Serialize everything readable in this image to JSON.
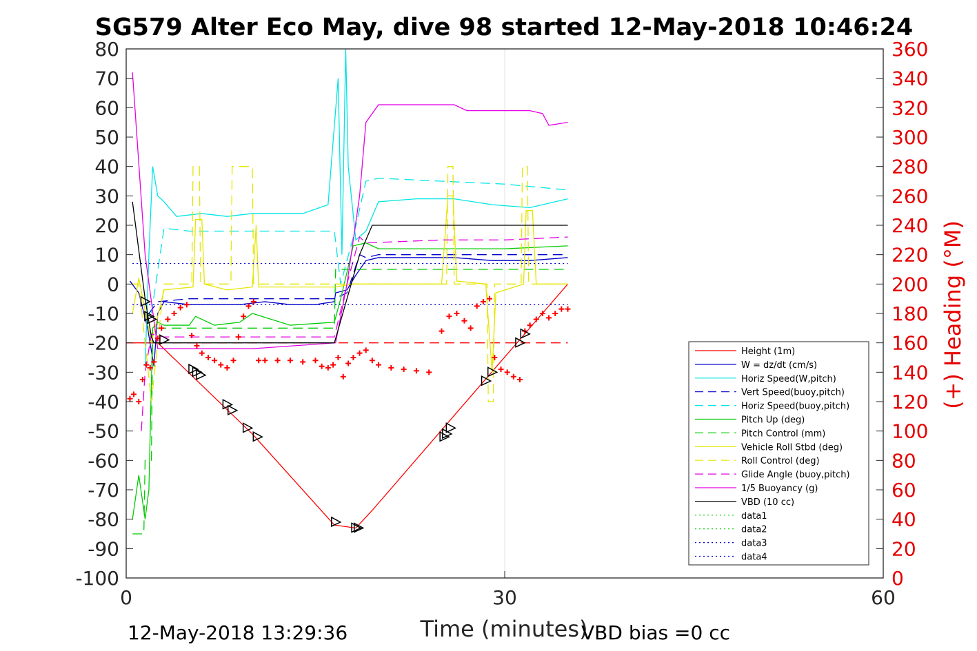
{
  "chart_data": {
    "type": "line",
    "title": "SG579 Alter Eco May, dive 98 started 12-May-2018 10:46:24",
    "xlabel": "Time (minutes)",
    "ylabel_right": "(+) Heading (°M)",
    "xlim": [
      0,
      60
    ],
    "ylim": [
      -100,
      80
    ],
    "ylim_right": [
      0,
      360
    ],
    "x_ticks": [
      "0",
      "30",
      "60"
    ],
    "y_ticks": [
      "80",
      "70",
      "60",
      "50",
      "40",
      "30",
      "20",
      "10",
      "0",
      "-10",
      "-20",
      "-30",
      "-40",
      "-50",
      "-60",
      "-70",
      "-80",
      "-90",
      "-100"
    ],
    "y_ticks_right": [
      "360",
      "340",
      "320",
      "300",
      "280",
      "260",
      "240",
      "220",
      "200",
      "180",
      "160",
      "140",
      "120",
      "100",
      "80",
      "60",
      "40",
      "20",
      "0"
    ],
    "grid": "x-only",
    "legend_position": "right-inside",
    "footer_left": "12-May-2018 13:29:36",
    "footer_right": "VBD bias =0 cc",
    "series": [
      {
        "name": "Height (1m)",
        "color": "#ff0000",
        "style": "solid",
        "x": [
          0,
          1.5,
          2.5,
          10,
          16.5,
          18.2,
          19.5,
          35
        ],
        "y": [
          -20,
          -20,
          -20,
          -51,
          -82,
          -83,
          -77,
          0
        ]
      },
      {
        "name": "W = dz/dt (cm/s)",
        "color": "#0000cc",
        "style": "solid",
        "x": [
          0.3,
          1,
          1.7,
          2.2,
          2.5,
          3,
          5,
          7,
          9,
          11,
          13,
          15,
          16.5,
          16.6,
          17.5,
          18.2,
          19,
          20,
          23,
          26,
          29,
          32,
          35
        ],
        "y": [
          1,
          -3,
          -15,
          -28,
          -10,
          -6,
          -7,
          -7,
          -7,
          -6,
          -7,
          -7,
          -6,
          -3,
          -2,
          3,
          8,
          9,
          9,
          9,
          8,
          8,
          9
        ]
      },
      {
        "name": "Horiz Speed(W,pitch)",
        "color": "#00e5e5",
        "style": "solid",
        "x": [
          1.5,
          1.8,
          2.1,
          2.5,
          3,
          4,
          6,
          8,
          10,
          12,
          14,
          16,
          16.8,
          17.1,
          17.4,
          17.6,
          18.2,
          19,
          20,
          23,
          26,
          29,
          32,
          34,
          35
        ],
        "y": [
          -28,
          10,
          40,
          30,
          28,
          23,
          24,
          23,
          24,
          24,
          24,
          27,
          70,
          10,
          80,
          40,
          15,
          18,
          28,
          29,
          29,
          27,
          26,
          28,
          29
        ]
      },
      {
        "name": "Vert Speed(buoy,pitch)",
        "color": "#0000cc",
        "style": "dashed",
        "x": [
          1.8,
          2.5,
          5,
          10,
          16.5,
          17.5,
          18.5,
          19,
          20,
          25,
          30,
          35
        ],
        "y": [
          -10,
          -6,
          -5,
          -5,
          -5,
          -3,
          10,
          9,
          10,
          10,
          10,
          10
        ]
      },
      {
        "name": "Horiz Speed(buoy,pitch)",
        "color": "#00e5e5",
        "style": "dashed",
        "x": [
          2,
          3,
          5,
          10,
          16.5,
          17,
          18,
          19,
          20,
          25,
          30,
          35
        ],
        "y": [
          -10,
          19,
          18,
          18,
          18,
          0,
          16,
          35,
          36,
          35,
          34,
          32
        ]
      },
      {
        "name": "Pitch Up (deg)",
        "color": "#00cc00",
        "style": "solid",
        "x": [
          0.5,
          1,
          1.5,
          1.8,
          2.1,
          2.5,
          3,
          5,
          5.5,
          7,
          9,
          10,
          13,
          16.5,
          17,
          18,
          19,
          20,
          25,
          30,
          35
        ],
        "y": [
          -80,
          -65,
          -80,
          -70,
          -15,
          -13,
          -14,
          -14,
          -11,
          -14,
          -13,
          -10,
          -14,
          -13,
          -5,
          13,
          14,
          12,
          12,
          12,
          13
        ]
      },
      {
        "name": "Pitch Control (mm)",
        "color": "#00cc00",
        "style": "dashed",
        "x": [
          0.5,
          1.4,
          1.5,
          2,
          2.1,
          16.5,
          16.6,
          18.2,
          18.3,
          35
        ],
        "y": [
          -85,
          -85,
          -60,
          -60,
          -15,
          -15,
          5,
          5,
          5,
          5
        ]
      },
      {
        "name": "Vehicle Roll Stbd (deg)",
        "color": "#e5e500",
        "style": "solid",
        "x": [
          0.5,
          1,
          2,
          3,
          5.3,
          5.5,
          6,
          6.2,
          8,
          10,
          10.3,
          10.5,
          16.5,
          18,
          25,
          25.5,
          25.9,
          26.2,
          28.5,
          29,
          29.3,
          31.5,
          31.7,
          32.2,
          32.5,
          35
        ],
        "y": [
          -10,
          2,
          -20,
          -2,
          -1,
          22,
          22,
          0,
          -2,
          -1,
          20,
          -1,
          -1,
          0,
          0,
          30,
          30,
          1,
          0,
          -30,
          -3,
          0,
          25,
          25,
          0,
          0
        ]
      },
      {
        "name": "Roll Control (deg)",
        "color": "#e5e500",
        "style": "dashed",
        "x": [
          0.5,
          1,
          2,
          3,
          5.2,
          5.3,
          5.8,
          5.9,
          8.3,
          8.4,
          10,
          10.1,
          16.5,
          25.4,
          25.5,
          25.9,
          26,
          28.6,
          28.7,
          29.1,
          29.2,
          31.3,
          31.4,
          31.8,
          31.9,
          35
        ],
        "y": [
          0,
          0,
          -40,
          0,
          0,
          40,
          40,
          0,
          0,
          40,
          40,
          0,
          0,
          0,
          40,
          40,
          0,
          0,
          -40,
          -40,
          0,
          0,
          40,
          40,
          0,
          0
        ]
      },
      {
        "name": "Glide Angle (buoy,pitch)",
        "color": "#e500e5",
        "style": "dashed",
        "x": [
          1.2,
          1.5,
          2,
          3,
          10,
          16.5,
          17.5,
          18.5,
          19,
          25,
          30,
          35
        ],
        "y": [
          -50,
          -30,
          -17,
          -18,
          -18,
          -18,
          0,
          16,
          14,
          15,
          15,
          16
        ]
      },
      {
        "name": "1/5 Buoyancy (g)",
        "color": "#e500e5",
        "style": "solid",
        "x": [
          0.5,
          1.5,
          2.5,
          10,
          16.6,
          17.5,
          18.5,
          19,
          20,
          26,
          27,
          32,
          33,
          33.5,
          35
        ],
        "y": [
          72,
          10,
          -22,
          -22,
          -20,
          0,
          30,
          55,
          61,
          61,
          59,
          59,
          58,
          54,
          55
        ]
      },
      {
        "name": "VBD (10 cc)",
        "color": "#000000",
        "style": "solid",
        "x": [
          0.5,
          1.5,
          2,
          2.2,
          16.5,
          18.5,
          19.5,
          35
        ],
        "y": [
          28,
          -5,
          -18,
          -20,
          -20,
          10,
          20,
          20
        ]
      },
      {
        "name": "data1",
        "color": "#00cc00",
        "style": "dotted",
        "x": [],
        "y": []
      },
      {
        "name": "data2",
        "color": "#00cc00",
        "style": "dotted",
        "x": [],
        "y": []
      },
      {
        "name": "data3",
        "color": "#0000cc",
        "style": "dotted",
        "x": [
          0.5,
          35
        ],
        "y": [
          7,
          7
        ]
      },
      {
        "name": "data4",
        "color": "#0000cc",
        "style": "dotted",
        "x": [
          0.5,
          35
        ],
        "y": [
          -7,
          -7
        ]
      }
    ],
    "reference_line": {
      "color": "#ff0000",
      "style": "dashed",
      "x": [
        0,
        35
      ],
      "y": [
        -20,
        -20
      ]
    },
    "heading_points": {
      "color": "#ff0000",
      "axis": "right",
      "x": [
        0.3,
        0.6,
        1,
        1.3,
        1.6,
        1.9,
        2.2,
        2.5,
        2.8,
        3.3,
        3.8,
        4.3,
        4.8,
        5.2,
        5.6,
        6,
        6.5,
        7,
        7.5,
        8,
        8.5,
        8.9,
        9.3,
        9.7,
        10.1,
        10.5,
        11,
        12,
        13,
        14,
        15,
        15.5,
        16,
        16.4,
        16.8,
        17.2,
        17.6,
        18,
        18.5,
        19,
        19.5,
        20,
        21,
        22,
        23,
        24,
        25,
        25.6,
        26.2,
        26.8,
        27.3,
        27.8,
        28.3,
        28.8,
        29.2,
        29.7,
        30.2,
        30.7,
        31.2,
        31.6,
        32,
        32.5,
        33,
        33.5,
        34,
        34.5,
        35
      ],
      "y": [
        122,
        125,
        120,
        135,
        145,
        143,
        147,
        163,
        170,
        176,
        180,
        184,
        186,
        165,
        158,
        153,
        150,
        148,
        145,
        143,
        148,
        164,
        178,
        185,
        188,
        148,
        148,
        148,
        148,
        147,
        148,
        144,
        143,
        145,
        150,
        137,
        146,
        150,
        153,
        155,
        148,
        145,
        143,
        142,
        141,
        140,
        168,
        178,
        180,
        175,
        170,
        185,
        188,
        190,
        150,
        142,
        140,
        137,
        135,
        168,
        172,
        176,
        180,
        177,
        180,
        183,
        183
      ]
    },
    "turn_markers": {
      "color": "#000000",
      "x": [
        1.5,
        1.8,
        2,
        3,
        5.3,
        5.6,
        5.9,
        8,
        8.4,
        9.6,
        10.4,
        16.6,
        18.2,
        18.4,
        25.2,
        25.4,
        25.7,
        28.5,
        29,
        31.2,
        31.6
      ],
      "y": [
        -6,
        -11,
        -12,
        -19,
        -29,
        -30,
        -31,
        -41,
        -43,
        -49,
        -52,
        -81,
        -83,
        -83,
        -52,
        -51,
        -49,
        -33,
        -30,
        -20,
        -17
      ]
    }
  }
}
